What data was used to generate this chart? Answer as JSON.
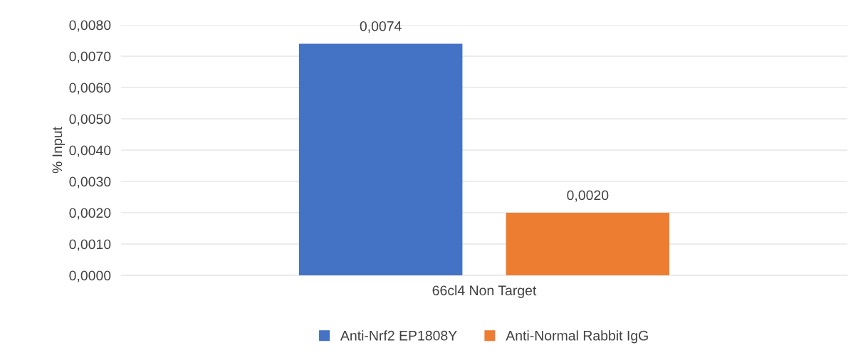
{
  "chart_data": {
    "type": "bar",
    "ylabel": "% Input",
    "categories": [
      "66cl4 Non Target"
    ],
    "series": [
      {
        "name": "Anti-Nrf2 EP1808Y",
        "color": "#4472c4",
        "values": [
          0.0074
        ],
        "value_labels": [
          "0,0074"
        ]
      },
      {
        "name": "Anti-Normal Rabbit IgG",
        "color": "#ed7d31",
        "values": [
          0.002
        ],
        "value_labels": [
          "0,0020"
        ]
      }
    ],
    "ylim": [
      0,
      0.008
    ],
    "yticks": [
      {
        "value": 0,
        "label": "0,0000"
      },
      {
        "value": 0.001,
        "label": "0,0010"
      },
      {
        "value": 0.002,
        "label": "0,0020"
      },
      {
        "value": 0.003,
        "label": "0,0030"
      },
      {
        "value": 0.004,
        "label": "0,0040"
      },
      {
        "value": 0.005,
        "label": "0,0050"
      },
      {
        "value": 0.006,
        "label": "0,0060"
      },
      {
        "value": 0.007,
        "label": "0,0070"
      },
      {
        "value": 0.008,
        "label": "0,0080"
      }
    ],
    "grid": "y",
    "legend": "bottom"
  }
}
